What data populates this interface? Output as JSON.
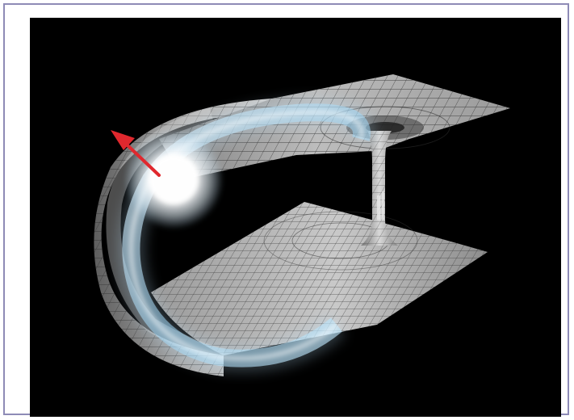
{
  "image": {
    "background_color": "#000000",
    "frame_border_color": "#8e8bb6",
    "surface_color": "#b8b8b8",
    "glow_color": "#bfe6ff",
    "arrow_color": "#e0282e"
  }
}
